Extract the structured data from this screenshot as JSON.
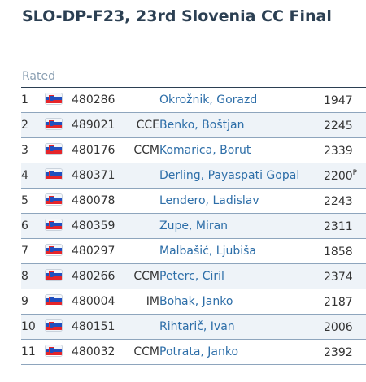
{
  "page": {
    "title": "SLO-DP-F23, 23rd Slovenia CC Final",
    "section_label": "Rated"
  },
  "flag_icon": "slovenia-flag-icon",
  "players": [
    {
      "rank": "1",
      "fide": "480286",
      "title": "",
      "name": "Okrožnik, Gorazd",
      "rating": "1947",
      "provisional": ""
    },
    {
      "rank": "2",
      "fide": "489021",
      "title": "CCE",
      "name": "Benko, Boštjan",
      "rating": "2245",
      "provisional": ""
    },
    {
      "rank": "3",
      "fide": "480176",
      "title": "CCM",
      "name": "Komarica, Borut",
      "rating": "2339",
      "provisional": ""
    },
    {
      "rank": "4",
      "fide": "480371",
      "title": "",
      "name": "Derling, Payaspati Gopal",
      "rating": "2200",
      "provisional": "P"
    },
    {
      "rank": "5",
      "fide": "480078",
      "title": "",
      "name": "Lendero, Ladislav",
      "rating": "2243",
      "provisional": ""
    },
    {
      "rank": "6",
      "fide": "480359",
      "title": "",
      "name": "Zupe, Miran",
      "rating": "2311",
      "provisional": ""
    },
    {
      "rank": "7",
      "fide": "480297",
      "title": "",
      "name": "Malbašić, Ljubiša",
      "rating": "1858",
      "provisional": ""
    },
    {
      "rank": "8",
      "fide": "480266",
      "title": "CCM",
      "name": "Peterc, Ciril",
      "rating": "2374",
      "provisional": ""
    },
    {
      "rank": "9",
      "fide": "480004",
      "title": "IM",
      "name": "Bohak, Janko",
      "rating": "2187",
      "provisional": ""
    },
    {
      "rank": "10",
      "fide": "480151",
      "title": "",
      "name": "Rihtarič, Ivan",
      "rating": "2006",
      "provisional": ""
    },
    {
      "rank": "11",
      "fide": "480032",
      "title": "CCM",
      "name": "Potrata, Janko",
      "rating": "2392",
      "provisional": ""
    }
  ]
}
